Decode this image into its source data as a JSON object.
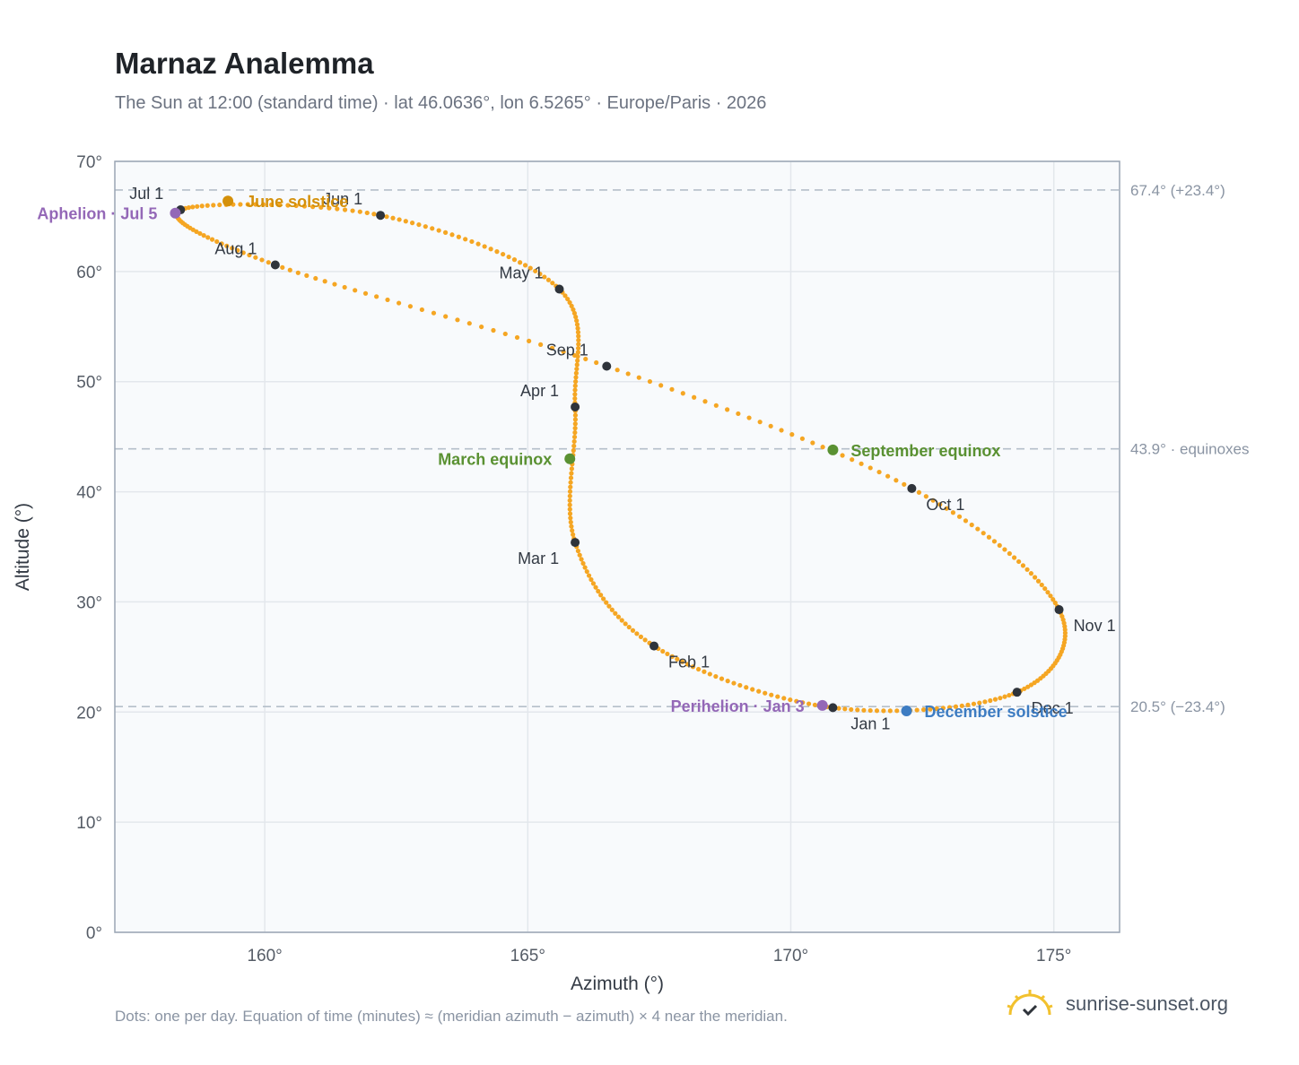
{
  "header": {
    "title": "Marnaz Analemma",
    "subtitle": "The Sun at 12:00 (standard time) · lat 46.0636°, lon 6.5265° · Europe/Paris · 2026"
  },
  "footer": {
    "note": "Dots: one per day. Equation of time (minutes) ≈ (meridian azimuth − azimuth) × 4 near the meridian.",
    "brand": "sunrise-sunset.org"
  },
  "colors": {
    "path": "#f5a623",
    "marker": "#2f343b",
    "june_solstice": "#d4900a",
    "equinox": "#5a9132",
    "december_solstice": "#3d7cc2",
    "apsis": "#9468b7",
    "plot_bg": "#f8fafc",
    "grid": "#e3e7ec",
    "reference_line": "#b5bfca"
  },
  "chart_data": {
    "type": "scatter",
    "xlabel": "Azimuth (°)",
    "ylabel": "Altitude (°)",
    "xlim": [
      157.15,
      176.25
    ],
    "ylim": [
      0,
      70
    ],
    "x_ticks": [
      160,
      165,
      170,
      175
    ],
    "x_tick_labels": [
      "160°",
      "165°",
      "170°",
      "175°"
    ],
    "y_ticks": [
      0,
      10,
      20,
      30,
      40,
      50,
      60,
      70
    ],
    "y_tick_labels": [
      "0°",
      "10°",
      "20°",
      "30°",
      "40°",
      "50°",
      "60°",
      "70°"
    ],
    "grid": true,
    "reference_lines": [
      {
        "y": 67.4,
        "label": "67.4° (+23.4°)"
      },
      {
        "y": 43.9,
        "label": "43.9° · equinoxes"
      },
      {
        "y": 20.5,
        "label": "20.5° (−23.4°)"
      }
    ],
    "month_markers": [
      {
        "label": "Jan 1",
        "day": 0,
        "x": 170.8,
        "y": 20.4
      },
      {
        "label": "Feb 1",
        "day": 31,
        "x": 167.4,
        "y": 26.0
      },
      {
        "label": "Mar 1",
        "day": 59,
        "x": 165.9,
        "y": 35.4
      },
      {
        "label": "Apr 1",
        "day": 90,
        "x": 165.9,
        "y": 47.7
      },
      {
        "label": "May 1",
        "day": 120,
        "x": 165.6,
        "y": 58.4
      },
      {
        "label": "Jun 1",
        "day": 151,
        "x": 162.2,
        "y": 65.1
      },
      {
        "label": "Jul 1",
        "day": 181,
        "x": 158.4,
        "y": 65.6
      },
      {
        "label": "Aug 1",
        "day": 212,
        "x": 160.2,
        "y": 60.6
      },
      {
        "label": "Sep 1",
        "day": 243,
        "x": 166.5,
        "y": 51.4
      },
      {
        "label": "Oct 1",
        "day": 273,
        "x": 172.3,
        "y": 40.3
      },
      {
        "label": "Nov 1",
        "day": 304,
        "x": 175.1,
        "y": 29.3
      },
      {
        "label": "Dec 1",
        "day": 334,
        "x": 174.3,
        "y": 21.8
      }
    ],
    "events": [
      {
        "label": "Perihelion · Jan 3",
        "day": 2,
        "x": 170.6,
        "y": 20.6,
        "color_key": "apsis"
      },
      {
        "label": "March equinox",
        "day": 79,
        "x": 165.8,
        "y": 43.0,
        "color_key": "equinox"
      },
      {
        "label": "June solstice",
        "day": 171,
        "x": 159.3,
        "y": 66.4,
        "color_key": "june_solstice"
      },
      {
        "label": "Aphelion · Jul 5",
        "day": 185,
        "x": 158.3,
        "y": 65.3,
        "color_key": "apsis"
      },
      {
        "label": "September equinox",
        "day": 265,
        "x": 170.8,
        "y": 43.8,
        "color_key": "equinox"
      },
      {
        "label": "December solstice",
        "day": 354,
        "x": 172.2,
        "y": 20.1,
        "color_key": "december_solstice"
      }
    ]
  }
}
